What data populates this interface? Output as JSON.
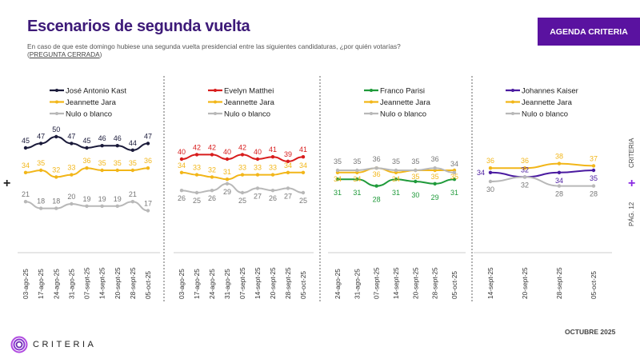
{
  "header": {
    "title": "Escenarios de segunda vuelta",
    "subtitle": "En caso de que este domingo hubiese una segunda vuelta presidencial entre las siguientes candidaturas, ¿por quién votarías?",
    "subtitle_tag_open": "(",
    "subtitle_tag": "PREGUNTA CERRADA",
    "subtitle_tag_close": ")",
    "badge": "AGENDA CRITERIA"
  },
  "side": {
    "brand": "CRITERIA",
    "page": "PÁG. 12",
    "plus": "+"
  },
  "left_plus": "+",
  "footer": {
    "logo_text": "CRITERIA",
    "date": "OCTUBRE 2025"
  },
  "colors": {
    "accent": "#5a12a0",
    "kast": "#1a1a3a",
    "jara": "#f2b619",
    "nulo": "#b8b8b8",
    "matthei": "#d81c1c",
    "parisi": "#1f9a3a",
    "kaiser": "#4a1aa0"
  },
  "chart_data": [
    {
      "type": "line",
      "categories": [
        "03-ago-25",
        "17-ago-25",
        "24-ago-25",
        "31-ago-25",
        "07-sept-25",
        "14-sept-25",
        "20-sept-25",
        "28-sept-25",
        "05-oct-25"
      ],
      "series": [
        {
          "name": "José Antonio Kast",
          "color": "#1a1a3a",
          "values": [
            45,
            47,
            50,
            47,
            45,
            46,
            46,
            44,
            47
          ]
        },
        {
          "name": "Jeannette Jara",
          "color": "#f2b619",
          "values": [
            34,
            35,
            32,
            33,
            36,
            35,
            35,
            35,
            36
          ]
        },
        {
          "name": "Nulo o blanco",
          "color": "#b8b8b8",
          "values": [
            21,
            18,
            18,
            20,
            19,
            19,
            19,
            21,
            17
          ]
        }
      ]
    },
    {
      "type": "line",
      "categories": [
        "03-ago-25",
        "17-ago-25",
        "24-ago-25",
        "31-ago-25",
        "07-sept-25",
        "14-sept-25",
        "20-sept-25",
        "28-sept-25",
        "05-oct-25"
      ],
      "series": [
        {
          "name": "Evelyn Matthei",
          "color": "#d81c1c",
          "values": [
            40,
            42,
            42,
            40,
            42,
            40,
            41,
            39,
            41
          ]
        },
        {
          "name": "Jeannette Jara",
          "color": "#f2b619",
          "values": [
            34,
            33,
            32,
            31,
            33,
            33,
            33,
            34,
            34
          ]
        },
        {
          "name": "Nulo o blanco",
          "color": "#b8b8b8",
          "values": [
            26,
            25,
            26,
            29,
            25,
            27,
            26,
            27,
            25
          ]
        }
      ]
    },
    {
      "type": "line",
      "categories": [
        "24-ago-25",
        "31-ago-25",
        "07-sept-25",
        "14-sept-25",
        "20-sept-25",
        "28-sept-25",
        "05-oct-25"
      ],
      "series": [
        {
          "name": "Franco Parisi",
          "color": "#1f9a3a",
          "values": [
            31,
            31,
            28,
            31,
            30,
            29,
            31
          ]
        },
        {
          "name": "Jeannette Jara",
          "color": "#f2b619",
          "values": [
            34,
            34,
            36,
            34,
            35,
            35,
            35
          ]
        },
        {
          "name": "Nulo o blanco",
          "color": "#b8b8b8",
          "values": [
            35,
            35,
            36,
            35,
            35,
            36,
            34
          ]
        }
      ]
    },
    {
      "type": "line",
      "categories": [
        "14-sept-25",
        "20-sept-25",
        "28-sept-25",
        "05-oct-25"
      ],
      "series": [
        {
          "name": "Johannes Kaiser",
          "color": "#4a1aa0",
          "values": [
            34,
            32,
            34,
            35
          ]
        },
        {
          "name": "Jeannette Jara",
          "color": "#f2b619",
          "values": [
            36,
            36,
            38,
            37
          ]
        },
        {
          "name": "Nulo o blanco",
          "color": "#b8b8b8",
          "values": [
            30,
            32,
            28,
            28
          ]
        }
      ]
    }
  ]
}
